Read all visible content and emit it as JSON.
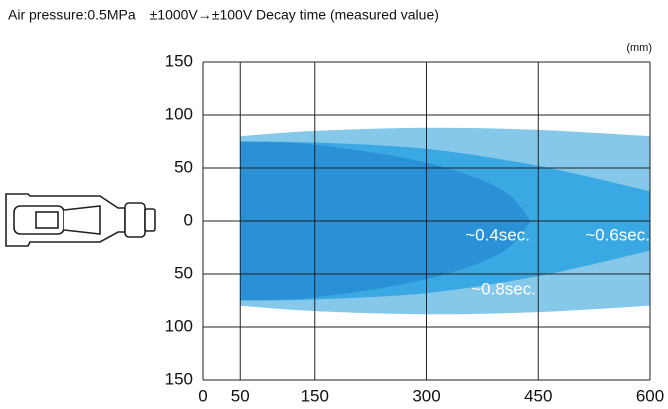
{
  "chart_data": {
    "type": "region",
    "title": "Air pressure:0.5MPa　±1000V→±100V Decay time (measured value)",
    "unit_label": "(mm)",
    "xlim": [
      0,
      600
    ],
    "xticks": [
      0,
      50,
      150,
      300,
      450,
      600
    ],
    "ylim": [
      -150,
      150
    ],
    "yticks": [
      {
        "value": -150,
        "label": "150"
      },
      {
        "value": -100,
        "label": "100"
      },
      {
        "value": -50,
        "label": "50"
      },
      0,
      50,
      100,
      150
    ],
    "grid": true,
    "series": [
      {
        "name": "~0.8sec.",
        "color": "#86c8ea",
        "x": [
          50,
          150,
          300,
          450,
          600
        ],
        "values": [
          80,
          85,
          88,
          86,
          80
        ]
      },
      {
        "name": "~0.6sec.",
        "color": "#3aa8e2",
        "x": [
          50,
          150,
          300,
          450,
          600
        ],
        "values": [
          75,
          74,
          68,
          52,
          28
        ]
      },
      {
        "name": "~0.4sec.",
        "color": "#2a91d6",
        "x": [
          50,
          150,
          300,
          400,
          440
        ],
        "values": [
          75,
          72,
          55,
          30,
          0
        ]
      }
    ]
  }
}
